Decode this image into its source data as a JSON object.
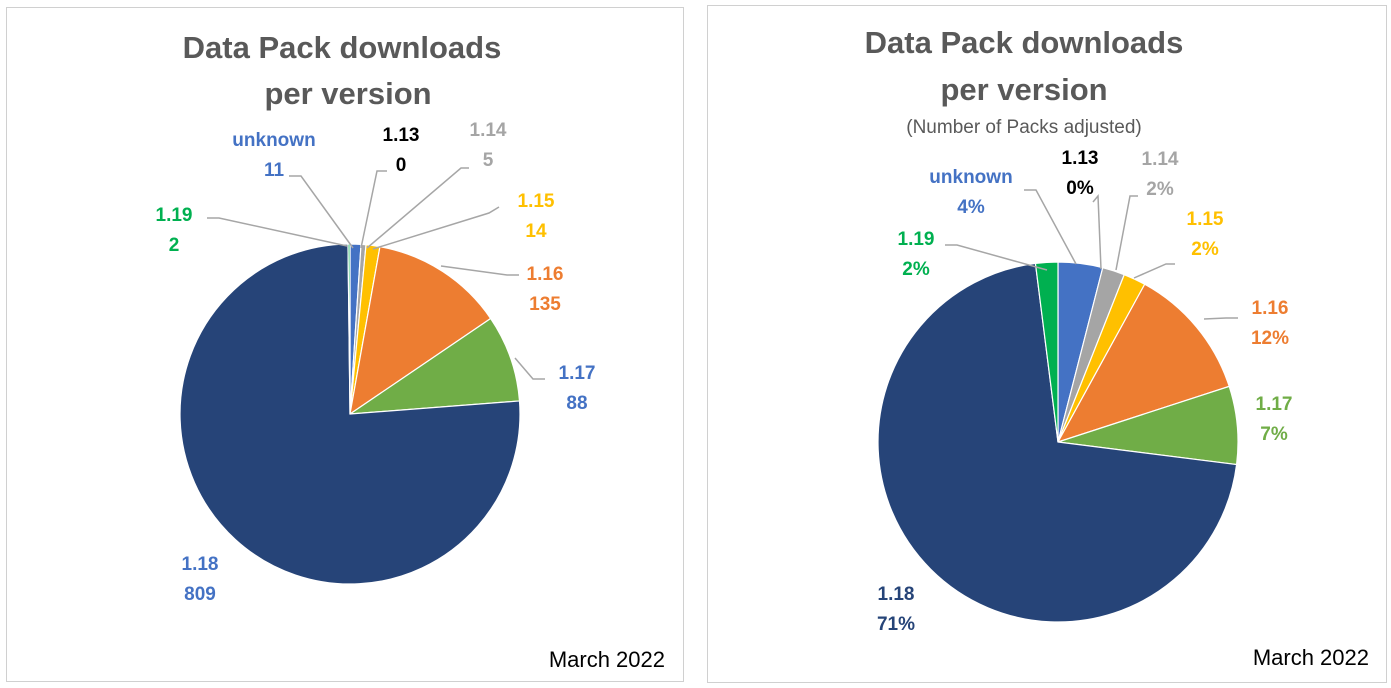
{
  "chart_data": [
    {
      "type": "pie",
      "title_line1": "Data Pack downloads",
      "title_line2": "per version",
      "footer": "March 2022",
      "slices": [
        {
          "label": "unknown",
          "value": 11,
          "value_text": "11",
          "color": "#4472c4",
          "label_color": "#4472c4"
        },
        {
          "label": "1.13",
          "value": 0,
          "value_text": "0",
          "color": "#000000",
          "label_color": "#000000"
        },
        {
          "label": "1.14",
          "value": 5,
          "value_text": "5",
          "color": "#a5a5a5",
          "label_color": "#a5a5a5"
        },
        {
          "label": "1.15",
          "value": 14,
          "value_text": "14",
          "color": "#ffc000",
          "label_color": "#ffc000"
        },
        {
          "label": "1.16",
          "value": 135,
          "value_text": "135",
          "color": "#ed7d31",
          "label_color": "#ed7d31"
        },
        {
          "label": "1.17",
          "value": 88,
          "value_text": "88",
          "color": "#70ad47",
          "label_color": "#4472c4"
        },
        {
          "label": "1.18",
          "value": 809,
          "value_text": "809",
          "color": "#264478",
          "label_color": "#4472c4"
        },
        {
          "label": "1.19",
          "value": 2,
          "value_text": "2",
          "color": "#00b050",
          "label_color": "#00b050"
        }
      ]
    },
    {
      "type": "pie",
      "title_line1": "Data Pack downloads",
      "title_line2": "per version",
      "subtitle": "(Number of Packs adjusted)",
      "footer": "March 2022",
      "slices": [
        {
          "label": "unknown",
          "value": 4,
          "value_text": "4%",
          "color": "#4472c4",
          "label_color": "#4472c4"
        },
        {
          "label": "1.13",
          "value": 0,
          "value_text": "0%",
          "color": "#000000",
          "label_color": "#000000"
        },
        {
          "label": "1.14",
          "value": 2,
          "value_text": "2%",
          "color": "#a5a5a5",
          "label_color": "#a5a5a5"
        },
        {
          "label": "1.15",
          "value": 2,
          "value_text": "2%",
          "color": "#ffc000",
          "label_color": "#ffc000"
        },
        {
          "label": "1.16",
          "value": 12,
          "value_text": "12%",
          "color": "#ed7d31",
          "label_color": "#ed7d31"
        },
        {
          "label": "1.17",
          "value": 7,
          "value_text": "7%",
          "color": "#70ad47",
          "label_color": "#70ad47"
        },
        {
          "label": "1.18",
          "value": 71,
          "value_text": "71%",
          "color": "#264478",
          "label_color": "#264478"
        },
        {
          "label": "1.19",
          "value": 2,
          "value_text": "2%",
          "color": "#00b050",
          "label_color": "#00b050"
        }
      ]
    }
  ]
}
